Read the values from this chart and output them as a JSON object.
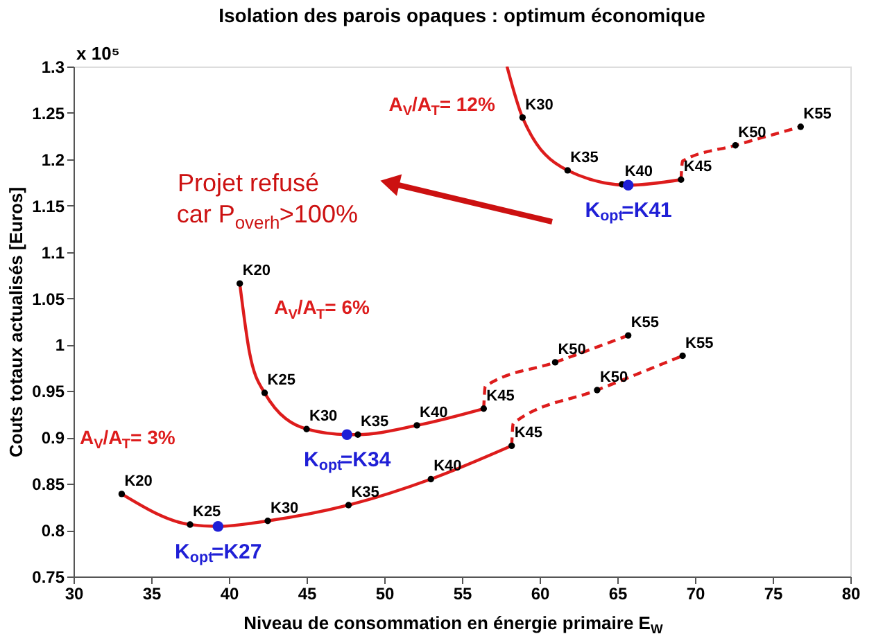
{
  "chart_data": {
    "type": "line",
    "title": "Isolation des parois opaques : optimum économique",
    "xlabel": "Niveau de consommation en énergie primaire E$_{W}$",
    "ylabel": "Couts totaux actualisés [Euros]",
    "xlim": [
      30,
      80
    ],
    "xticks": [
      30,
      35,
      40,
      45,
      50,
      55,
      60,
      65,
      70,
      75,
      80
    ],
    "ylim": [
      0.75,
      1.3
    ],
    "yticks": [
      0.75,
      0.8,
      0.85,
      0.9,
      0.95,
      1,
      1.05,
      1.1,
      1.15,
      1.2,
      1.25,
      1.3
    ],
    "grid": false,
    "legend": false,
    "annotations": [
      "x 10⁵",
      "Projet refusé\ncar P$_{overh}$>100%"
    ],
    "series": [
      {
        "name": "A$_{V}$/A$_{T}$= 3%",
        "line_style": "solid",
        "marker": "none",
        "color": "#dd1c1c",
        "x": [
          33.1,
          37.5,
          39.3,
          42.5,
          47.7,
          53.0,
          58.2
        ],
        "values": [
          0.839,
          0.806,
          0.804,
          0.81,
          0.827,
          0.855,
          0.891
        ]
      },
      {
        "line_style": "dashed",
        "marker": "none",
        "color": "#dd1c1c",
        "x": [
          58.2,
          58.3,
          63.7,
          69.2
        ],
        "values": [
          0.891,
          0.915,
          0.951,
          0.988
        ]
      },
      {
        "name": "A$_{V}$/A$_{T}$= 6%",
        "line_style": "solid",
        "marker": "none",
        "color": "#dd1c1c",
        "x": [
          40.7,
          41.3,
          42.3,
          45.0,
          47.6,
          48.3,
          52.1,
          56.4
        ],
        "values": [
          1.066,
          0.994,
          0.948,
          0.909,
          0.903,
          0.903,
          0.913,
          0.931
        ]
      },
      {
        "line_style": "dashed",
        "marker": "none",
        "color": "#dd1c1c",
        "x": [
          56.4,
          56.5,
          61.0,
          65.7
        ],
        "values": [
          0.931,
          0.955,
          0.981,
          1.01
        ]
      },
      {
        "name": "A$_{V}$/A$_{T}$= 12%",
        "line_style": "solid",
        "marker": "none",
        "color": "#dd1c1c",
        "x": [
          57.9,
          58.9,
          61.8,
          65.7,
          69.1
        ],
        "values": [
          1.3,
          1.245,
          1.188,
          1.172,
          1.178
        ]
      },
      {
        "line_style": "dashed",
        "marker": "none",
        "color": "#dd1c1c",
        "x": [
          69.1,
          69.2,
          72.6,
          76.8
        ],
        "values": [
          1.178,
          1.198,
          1.215,
          1.235
        ]
      },
      {
        "type": "scatter",
        "marker": "circle",
        "color": "#000000",
        "x": [
          33.1,
          37.5,
          42.5,
          47.7,
          53.0,
          58.2,
          63.7,
          69.2,
          40.7,
          42.3,
          45.0,
          48.3,
          52.1,
          56.4,
          61.0,
          65.7,
          58.9,
          61.8,
          65.3,
          69.1,
          72.6,
          76.8
        ],
        "values": [
          0.839,
          0.806,
          0.81,
          0.827,
          0.855,
          0.891,
          0.951,
          0.988,
          1.066,
          0.948,
          0.909,
          0.903,
          0.913,
          0.931,
          0.981,
          1.01,
          1.245,
          1.188,
          1.173,
          1.178,
          1.215,
          1.235
        ],
        "value_labels": [
          "K20",
          "K25",
          "K30",
          "K35",
          "K40",
          "K45",
          "K50",
          "K55",
          "K20",
          "K25",
          "K30",
          "K35",
          "K40",
          "K45",
          "K50",
          "K55",
          "K30",
          "K35",
          "K40",
          "K45",
          "K50",
          "K55"
        ]
      },
      {
        "type": "scatter",
        "marker": "circle",
        "color": "#1f1fd6",
        "x": [
          39.3,
          47.6,
          65.7
        ],
        "values": [
          0.804,
          0.903,
          1.172
        ],
        "value_labels": [
          "K$_{opt}$=K27",
          "K$_{opt}$=K34",
          "K$_{opt}$=K41"
        ]
      }
    ]
  }
}
